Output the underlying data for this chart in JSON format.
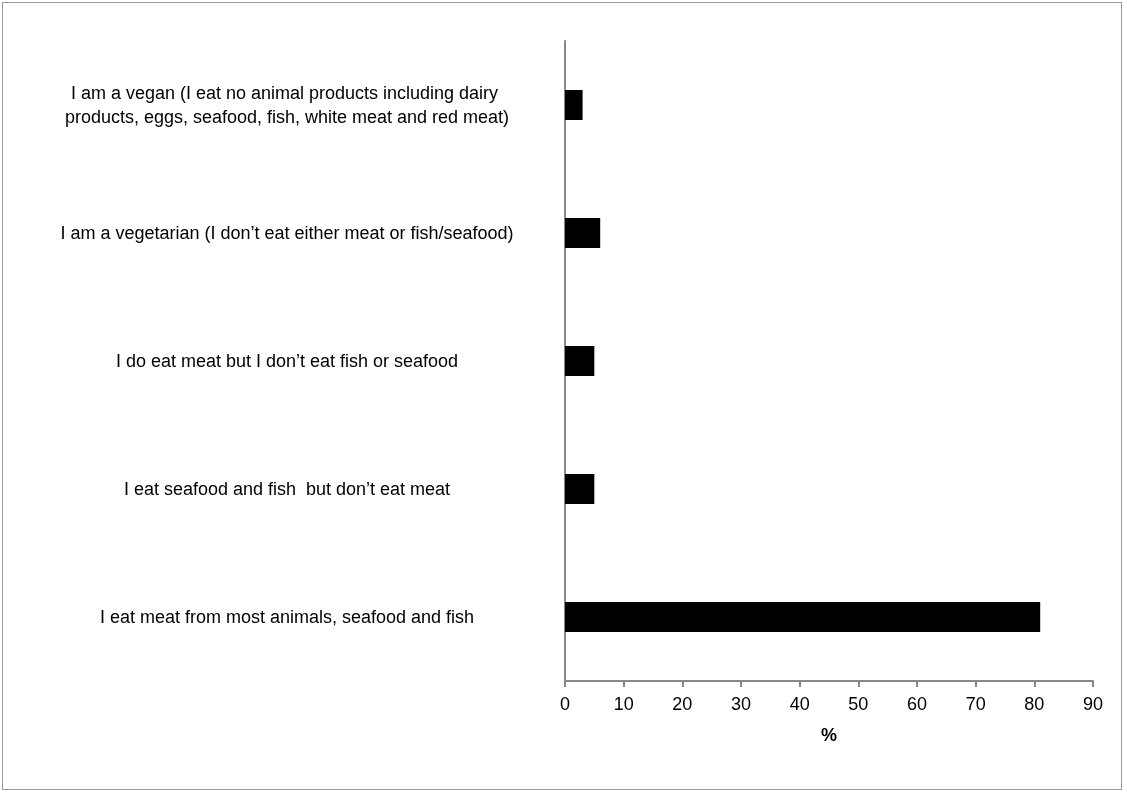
{
  "chart_data": {
    "type": "bar",
    "orientation": "horizontal",
    "xlabel": "%",
    "categories": [
      "I am a vegan (I eat no animal products including dairy products, eggs, seafood, fish, white meat and red meat)",
      "I am a vegetarian (I don’t eat either meat or fish/seafood)",
      "I do eat meat but I don’t eat fish or seafood",
      "I eat seafood and fish  but don’t eat meat",
      "I eat meat from most animals, seafood and fish"
    ],
    "values": [
      3,
      6,
      5,
      5,
      81
    ],
    "color": "#000000",
    "xlim": [
      0,
      90
    ],
    "xticks": [
      0,
      10,
      20,
      30,
      40,
      50,
      60,
      70,
      80,
      90
    ],
    "grid": false
  }
}
